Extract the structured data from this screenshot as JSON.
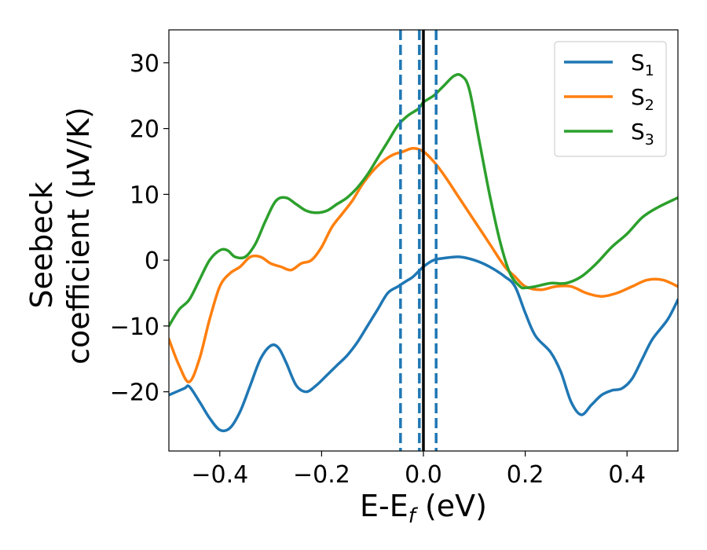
{
  "chart_data": {
    "type": "line",
    "title": "",
    "xlabel": {
      "main": "E-E",
      "sub": "f",
      "unit": " (eV)"
    },
    "ylabel": {
      "line1": "Seebeck",
      "line2": "coefficient  (μV/K)"
    },
    "xlim": [
      -0.5,
      0.5
    ],
    "ylim": [
      -29,
      35
    ],
    "xticks": [
      -0.4,
      -0.2,
      0.0,
      0.2,
      0.4
    ],
    "xtick_labels": [
      "−0.4",
      "−0.2",
      "0.0",
      "0.2",
      "0.4"
    ],
    "yticks": [
      -20,
      -10,
      0,
      10,
      20,
      30
    ],
    "ytick_labels": [
      "−20",
      "−10",
      "0",
      "10",
      "20",
      "30"
    ],
    "grid": false,
    "legend_position": "top-right",
    "vlines": [
      {
        "x": -0.045,
        "style": "dashed",
        "color": "#1f77b4"
      },
      {
        "x": -0.008,
        "style": "dashed",
        "color": "#1f77b4"
      },
      {
        "x": 0.0,
        "style": "solid",
        "color": "#000000"
      },
      {
        "x": 0.025,
        "style": "dashed",
        "color": "#1f77b4"
      }
    ],
    "series": [
      {
        "name": "S",
        "sub": "1",
        "color": "#1f77b4",
        "x": [
          -0.5,
          -0.47,
          -0.46,
          -0.44,
          -0.42,
          -0.4,
          -0.38,
          -0.36,
          -0.34,
          -0.32,
          -0.3,
          -0.285,
          -0.27,
          -0.25,
          -0.23,
          -0.21,
          -0.19,
          -0.17,
          -0.15,
          -0.13,
          -0.11,
          -0.09,
          -0.07,
          -0.05,
          -0.03,
          -0.02,
          0.0,
          0.02,
          0.04,
          0.07,
          0.1,
          0.13,
          0.16,
          0.18,
          0.2,
          0.22,
          0.25,
          0.27,
          0.29,
          0.31,
          0.33,
          0.35,
          0.37,
          0.39,
          0.41,
          0.43,
          0.45,
          0.48,
          0.5
        ],
        "y": [
          -20.5,
          -19.5,
          -19.2,
          -21.5,
          -24,
          -25.8,
          -25.5,
          -23,
          -19,
          -15,
          -13,
          -13.3,
          -15.5,
          -19,
          -20,
          -19,
          -17.5,
          -16,
          -14.5,
          -12.5,
          -10,
          -7.5,
          -5,
          -4,
          -3,
          -2.5,
          -1,
          0,
          0.3,
          0.5,
          0,
          -1,
          -2.5,
          -4,
          -8,
          -11.5,
          -14,
          -17,
          -21.5,
          -23.5,
          -22,
          -20.5,
          -19.8,
          -19.5,
          -18,
          -15,
          -12,
          -9,
          -6
        ]
      },
      {
        "name": "S",
        "sub": "2",
        "color": "#ff7f0e",
        "x": [
          -0.5,
          -0.48,
          -0.46,
          -0.44,
          -0.42,
          -0.4,
          -0.38,
          -0.36,
          -0.34,
          -0.32,
          -0.3,
          -0.28,
          -0.26,
          -0.24,
          -0.22,
          -0.2,
          -0.18,
          -0.16,
          -0.14,
          -0.12,
          -0.1,
          -0.08,
          -0.06,
          -0.04,
          -0.02,
          0.0,
          0.02,
          0.04,
          0.07,
          0.1,
          0.13,
          0.16,
          0.18,
          0.2,
          0.23,
          0.26,
          0.29,
          0.32,
          0.35,
          0.38,
          0.41,
          0.44,
          0.47,
          0.5
        ],
        "y": [
          -12,
          -16,
          -18.5,
          -15,
          -9,
          -4,
          -2,
          -1,
          0.5,
          0.5,
          -0.5,
          -1,
          -1.5,
          -0.5,
          0,
          2,
          5,
          7,
          9,
          11.5,
          13.5,
          15,
          16,
          16.5,
          17,
          16.5,
          15,
          13,
          9.5,
          6,
          2.5,
          -1,
          -2.5,
          -4,
          -4.5,
          -4,
          -4,
          -5,
          -5.5,
          -5,
          -4,
          -3,
          -3,
          -4
        ]
      },
      {
        "name": "S",
        "sub": "3",
        "color": "#2ca02c",
        "x": [
          -0.5,
          -0.48,
          -0.46,
          -0.44,
          -0.42,
          -0.4,
          -0.385,
          -0.37,
          -0.35,
          -0.33,
          -0.31,
          -0.29,
          -0.27,
          -0.25,
          -0.23,
          -0.21,
          -0.19,
          -0.17,
          -0.15,
          -0.13,
          -0.11,
          -0.09,
          -0.07,
          -0.05,
          -0.03,
          -0.01,
          0.0,
          0.02,
          0.04,
          0.06,
          0.075,
          0.09,
          0.11,
          0.13,
          0.15,
          0.17,
          0.19,
          0.2,
          0.22,
          0.25,
          0.28,
          0.31,
          0.34,
          0.37,
          0.4,
          0.43,
          0.46,
          0.5
        ],
        "y": [
          -10,
          -7.5,
          -6,
          -3,
          0,
          1.5,
          1.5,
          0.5,
          0.5,
          2.5,
          6,
          9,
          9.5,
          8.5,
          7.5,
          7.2,
          7.5,
          8.5,
          9.5,
          11,
          13,
          15.5,
          18,
          20.5,
          22,
          23,
          24,
          25,
          26.5,
          28,
          28,
          26,
          18,
          10,
          3,
          -2,
          -4,
          -4.2,
          -4,
          -3.5,
          -3.5,
          -2.5,
          -0.5,
          2,
          4,
          6.5,
          8,
          9.5
        ]
      }
    ]
  }
}
